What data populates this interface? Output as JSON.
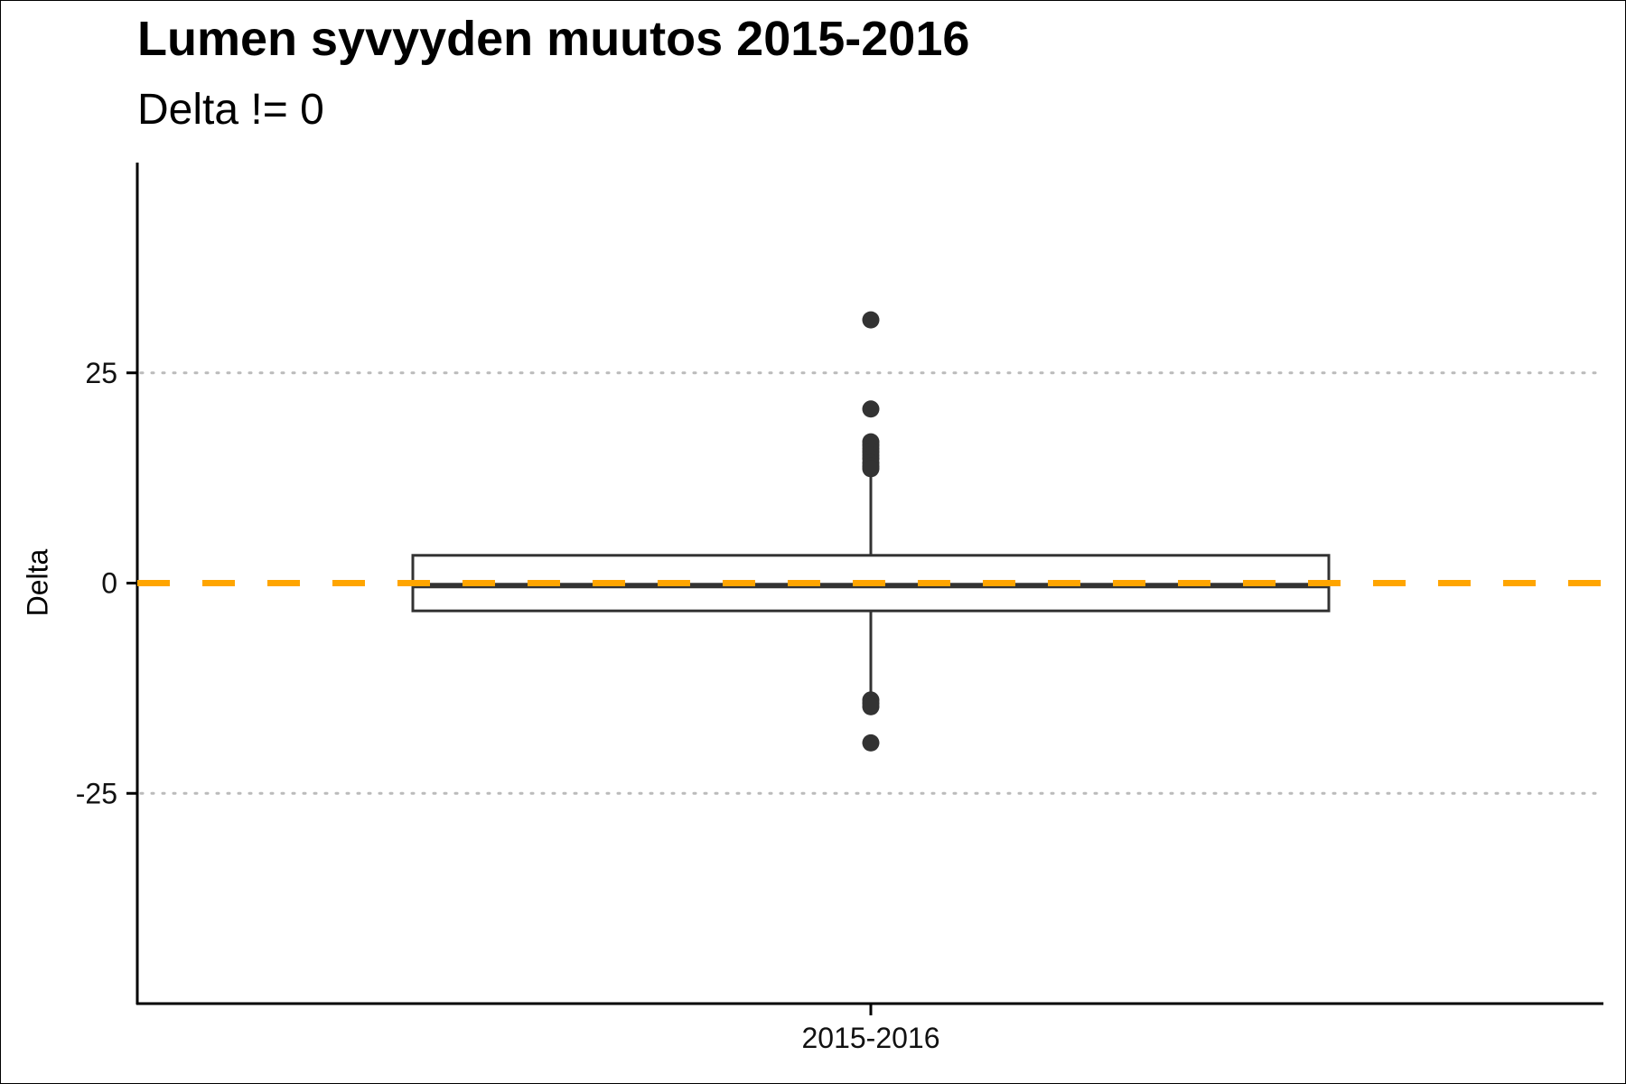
{
  "chart_data": {
    "type": "box",
    "title": "Lumen syvyyden muutos 2015-2016",
    "subtitle": "Delta != 0",
    "xlabel": "",
    "ylabel": "Delta",
    "categories": [
      "2015-2016"
    ],
    "ylim": [
      -50,
      50
    ],
    "yticks": [
      25,
      0,
      -25
    ],
    "ytick_labels": [
      "25",
      "0",
      "-25"
    ],
    "grid": "dotted horizontal at ticks ±25",
    "boxes": [
      {
        "category": "2015-2016",
        "q1": -3.3,
        "median": -0.3,
        "q3": 3.3,
        "whisker_low": -13.5,
        "whisker_high": 13.5,
        "outliers": [
          31.3,
          20.7,
          16.8,
          16.4,
          16.0,
          15.6,
          15.2,
          14.8,
          14.3,
          13.9,
          13.6,
          -13.9,
          -14.3,
          -14.7,
          -19.0
        ]
      }
    ],
    "reference_line": {
      "y": 0,
      "style": "dashed",
      "color": "#FFA500"
    },
    "colors": {
      "box": "#333333",
      "outlier": "#333333",
      "reference": "#FFA500",
      "grid": "#BBBBBB"
    }
  }
}
